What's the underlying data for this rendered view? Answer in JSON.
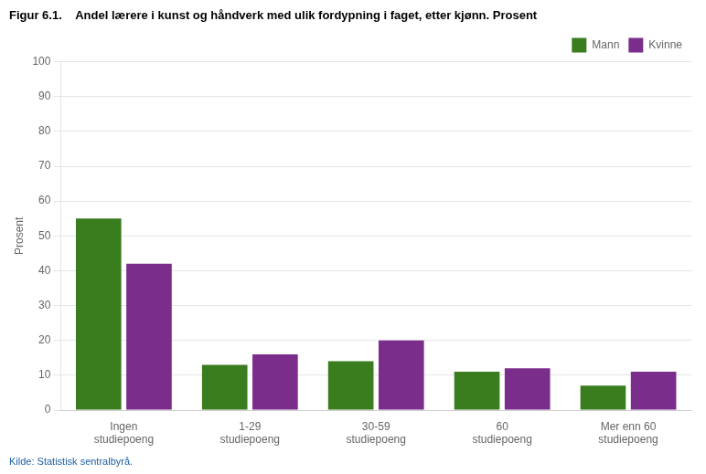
{
  "chart_data": {
    "type": "bar",
    "title": "Figur 6.1.    Andel lærere i kunst og håndverk med ulik fordypning i faget, etter kjønn. Prosent",
    "ylabel": "Prosent",
    "annotations": [
      "Kilde: Statistisk sentralbyrå."
    ],
    "categories": [
      "Ingen\nstudiepoeng",
      "1-29\nstudiepoeng",
      "30-59\nstudiepoeng",
      "60\nstudiepoeng",
      "Mer enn 60\nstudiepoeng"
    ],
    "series": [
      {
        "name": "Mann",
        "color": "#3a7d1e",
        "values": [
          55,
          13,
          14,
          11,
          7
        ]
      },
      {
        "name": "Kvinne",
        "color": "#7b2d8b",
        "values": [
          42,
          16,
          20,
          12,
          11
        ]
      }
    ],
    "ylim": [
      0,
      100
    ],
    "yticks": [
      0,
      10,
      20,
      30,
      40,
      50,
      60,
      70,
      80,
      90,
      100
    ],
    "grid": true,
    "legend": "upper right"
  }
}
